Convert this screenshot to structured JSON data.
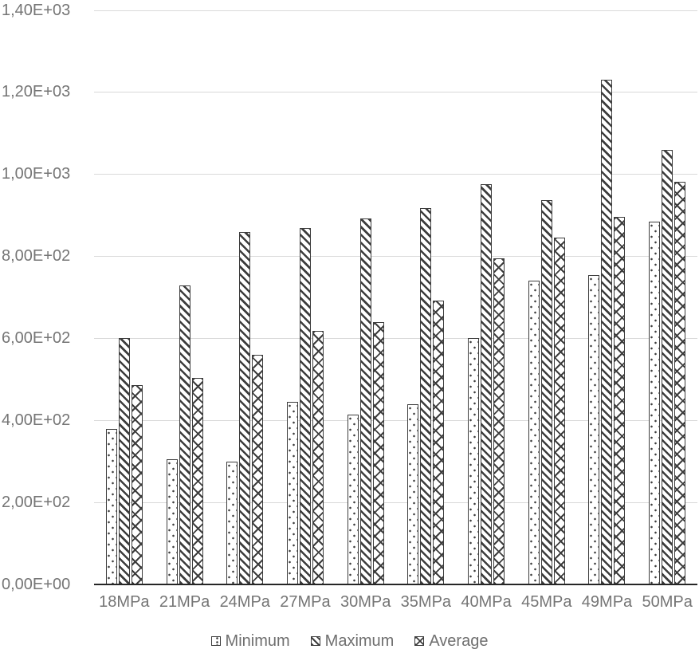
{
  "chart_data": {
    "type": "bar",
    "title": "",
    "xlabel": "",
    "ylabel": "",
    "ylim": [
      0,
      1400
    ],
    "grid": true,
    "legend_position": "bottom",
    "categories": [
      "18MPa",
      "21MPa",
      "24MPa",
      "27MPa",
      "30MPa",
      "35MPa",
      "40MPa",
      "45MPa",
      "49MPa",
      "50MPa"
    ],
    "series": [
      {
        "name": "Minimum",
        "pattern": "dotted",
        "values": [
          380,
          305,
          300,
          445,
          415,
          440,
          600,
          740,
          755,
          885
        ]
      },
      {
        "name": "Maximum",
        "pattern": "diagonal",
        "values": [
          600,
          730,
          860,
          870,
          893,
          918,
          977,
          938,
          1230,
          1060
        ]
      },
      {
        "name": "Average",
        "pattern": "crosshatch",
        "values": [
          487,
          503,
          560,
          618,
          640,
          693,
          795,
          845,
          897,
          983
        ]
      }
    ],
    "y_ticks": [
      {
        "value": 0,
        "label": "0,00E+00"
      },
      {
        "value": 200,
        "label": "2,00E+02"
      },
      {
        "value": 400,
        "label": "4,00E+02"
      },
      {
        "value": 600,
        "label": "6,00E+02"
      },
      {
        "value": 800,
        "label": "8,00E+02"
      },
      {
        "value": 1000,
        "label": "1,00E+03"
      },
      {
        "value": 1200,
        "label": "1,20E+03"
      },
      {
        "value": 1400,
        "label": "1,40E+03"
      }
    ]
  },
  "colors": {
    "background": "#ffffff",
    "gridline": "#d9d9d9",
    "axis_line": "#262626",
    "label_text": "#757575",
    "bar_outline": "#3d3d3d"
  }
}
